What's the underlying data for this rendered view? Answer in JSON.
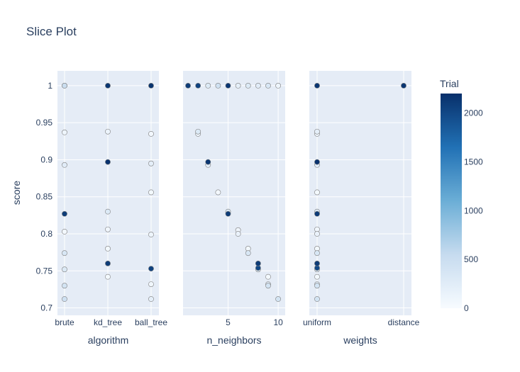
{
  "chart_data": {
    "type": "scatter",
    "title": "Slice Plot",
    "ylabel": "score",
    "ylim": [
      0.69,
      1.02
    ],
    "y_ticks": [
      0.7,
      0.75,
      0.8,
      0.85,
      0.9,
      0.95,
      1
    ],
    "y_tick_labels": [
      "0.7",
      "0.75",
      "0.8",
      "0.85",
      "0.9",
      "0.95",
      "1"
    ],
    "colorbar": {
      "title": "Trial",
      "range": [
        0,
        2200
      ],
      "ticks": [
        0,
        500,
        1000,
        1500,
        2000
      ],
      "tick_labels": [
        "0",
        "500",
        "1000",
        "1500",
        "2000"
      ],
      "colors": [
        "#f7fbff",
        "#c6dbef",
        "#6baed6",
        "#2171b5",
        "#08306b"
      ]
    },
    "panels": [
      {
        "xlabel": "algorithm",
        "axis_type": "category",
        "categories": [
          "brute",
          "kd_tree",
          "ball_tree"
        ],
        "points": [
          {
            "x": "brute",
            "y": 1.0,
            "trial": 150
          },
          {
            "x": "brute",
            "y": 1.0,
            "trial": 500
          },
          {
            "x": "brute",
            "y": 0.937,
            "trial": 100
          },
          {
            "x": "brute",
            "y": 0.893,
            "trial": 250
          },
          {
            "x": "brute",
            "y": 0.827,
            "trial": 2100
          },
          {
            "x": "brute",
            "y": 0.803,
            "trial": 50
          },
          {
            "x": "brute",
            "y": 0.774,
            "trial": 350
          },
          {
            "x": "brute",
            "y": 0.752,
            "trial": 300
          },
          {
            "x": "brute",
            "y": 0.73,
            "trial": 400
          },
          {
            "x": "brute",
            "y": 0.712,
            "trial": 450
          },
          {
            "x": "kd_tree",
            "y": 1.0,
            "trial": 2150
          },
          {
            "x": "kd_tree",
            "y": 0.938,
            "trial": 120
          },
          {
            "x": "kd_tree",
            "y": 0.897,
            "trial": 2180
          },
          {
            "x": "kd_tree",
            "y": 0.83,
            "trial": 300
          },
          {
            "x": "kd_tree",
            "y": 0.806,
            "trial": 80
          },
          {
            "x": "kd_tree",
            "y": 0.78,
            "trial": 60
          },
          {
            "x": "kd_tree",
            "y": 0.76,
            "trial": 2100
          },
          {
            "x": "kd_tree",
            "y": 0.742,
            "trial": 40
          },
          {
            "x": "ball_tree",
            "y": 1.0,
            "trial": 2170
          },
          {
            "x": "ball_tree",
            "y": 0.935,
            "trial": 50
          },
          {
            "x": "ball_tree",
            "y": 0.895,
            "trial": 200
          },
          {
            "x": "ball_tree",
            "y": 0.856,
            "trial": 40
          },
          {
            "x": "ball_tree",
            "y": 0.799,
            "trial": 100
          },
          {
            "x": "ball_tree",
            "y": 0.753,
            "trial": 2050
          },
          {
            "x": "ball_tree",
            "y": 0.732,
            "trial": 70
          },
          {
            "x": "ball_tree",
            "y": 0.712,
            "trial": 200
          }
        ]
      },
      {
        "xlabel": "n_neighbors",
        "axis_type": "linear",
        "xlim": [
          0.5,
          10.7
        ],
        "x_ticks": [
          5,
          10
        ],
        "x_tick_labels": [
          "5",
          "10"
        ],
        "points": [
          {
            "x": 1,
            "y": 1.0,
            "trial": 2100
          },
          {
            "x": 2,
            "y": 1.0,
            "trial": 2050
          },
          {
            "x": 3,
            "y": 1.0,
            "trial": 300
          },
          {
            "x": 4,
            "y": 1.0,
            "trial": 450
          },
          {
            "x": 5,
            "y": 1.0,
            "trial": 2150
          },
          {
            "x": 6,
            "y": 1.0,
            "trial": 200
          },
          {
            "x": 7,
            "y": 1.0,
            "trial": 300
          },
          {
            "x": 8,
            "y": 1.0,
            "trial": 250
          },
          {
            "x": 9,
            "y": 1.0,
            "trial": 350
          },
          {
            "x": 10,
            "y": 1.0,
            "trial": 100
          },
          {
            "x": 2,
            "y": 0.938,
            "trial": 300
          },
          {
            "x": 2,
            "y": 0.935,
            "trial": 100
          },
          {
            "x": 3,
            "y": 0.897,
            "trial": 2150
          },
          {
            "x": 3,
            "y": 0.893,
            "trial": 250
          },
          {
            "x": 4,
            "y": 0.856,
            "trial": 50
          },
          {
            "x": 5,
            "y": 0.83,
            "trial": 300
          },
          {
            "x": 5,
            "y": 0.827,
            "trial": 2100
          },
          {
            "x": 6,
            "y": 0.805,
            "trial": 80
          },
          {
            "x": 6,
            "y": 0.8,
            "trial": 150
          },
          {
            "x": 7,
            "y": 0.78,
            "trial": 60
          },
          {
            "x": 7,
            "y": 0.774,
            "trial": 350
          },
          {
            "x": 8,
            "y": 0.76,
            "trial": 2100
          },
          {
            "x": 8,
            "y": 0.754,
            "trial": 2000
          },
          {
            "x": 8,
            "y": 0.752,
            "trial": 300
          },
          {
            "x": 9,
            "y": 0.742,
            "trial": 40
          },
          {
            "x": 9,
            "y": 0.732,
            "trial": 250
          },
          {
            "x": 9,
            "y": 0.73,
            "trial": 400
          },
          {
            "x": 10,
            "y": 0.712,
            "trial": 400
          }
        ]
      },
      {
        "xlabel": "weights",
        "axis_type": "category",
        "categories": [
          "uniform",
          "distance"
        ],
        "points": [
          {
            "x": "uniform",
            "y": 1.0,
            "trial": 2150
          },
          {
            "x": "uniform",
            "y": 0.938,
            "trial": 200
          },
          {
            "x": "uniform",
            "y": 0.935,
            "trial": 100
          },
          {
            "x": "uniform",
            "y": 0.897,
            "trial": 2180
          },
          {
            "x": "uniform",
            "y": 0.893,
            "trial": 250
          },
          {
            "x": "uniform",
            "y": 0.856,
            "trial": 40
          },
          {
            "x": "uniform",
            "y": 0.83,
            "trial": 300
          },
          {
            "x": "uniform",
            "y": 0.827,
            "trial": 2100
          },
          {
            "x": "uniform",
            "y": 0.806,
            "trial": 80
          },
          {
            "x": "uniform",
            "y": 0.8,
            "trial": 150
          },
          {
            "x": "uniform",
            "y": 0.78,
            "trial": 60
          },
          {
            "x": "uniform",
            "y": 0.774,
            "trial": 350
          },
          {
            "x": "uniform",
            "y": 0.76,
            "trial": 2100
          },
          {
            "x": "uniform",
            "y": 0.754,
            "trial": 2000
          },
          {
            "x": "uniform",
            "y": 0.752,
            "trial": 300
          },
          {
            "x": "uniform",
            "y": 0.742,
            "trial": 40
          },
          {
            "x": "uniform",
            "y": 0.732,
            "trial": 250
          },
          {
            "x": "uniform",
            "y": 0.73,
            "trial": 400
          },
          {
            "x": "uniform",
            "y": 0.712,
            "trial": 400
          },
          {
            "x": "distance",
            "y": 1.0,
            "trial": 2150
          }
        ]
      }
    ]
  }
}
